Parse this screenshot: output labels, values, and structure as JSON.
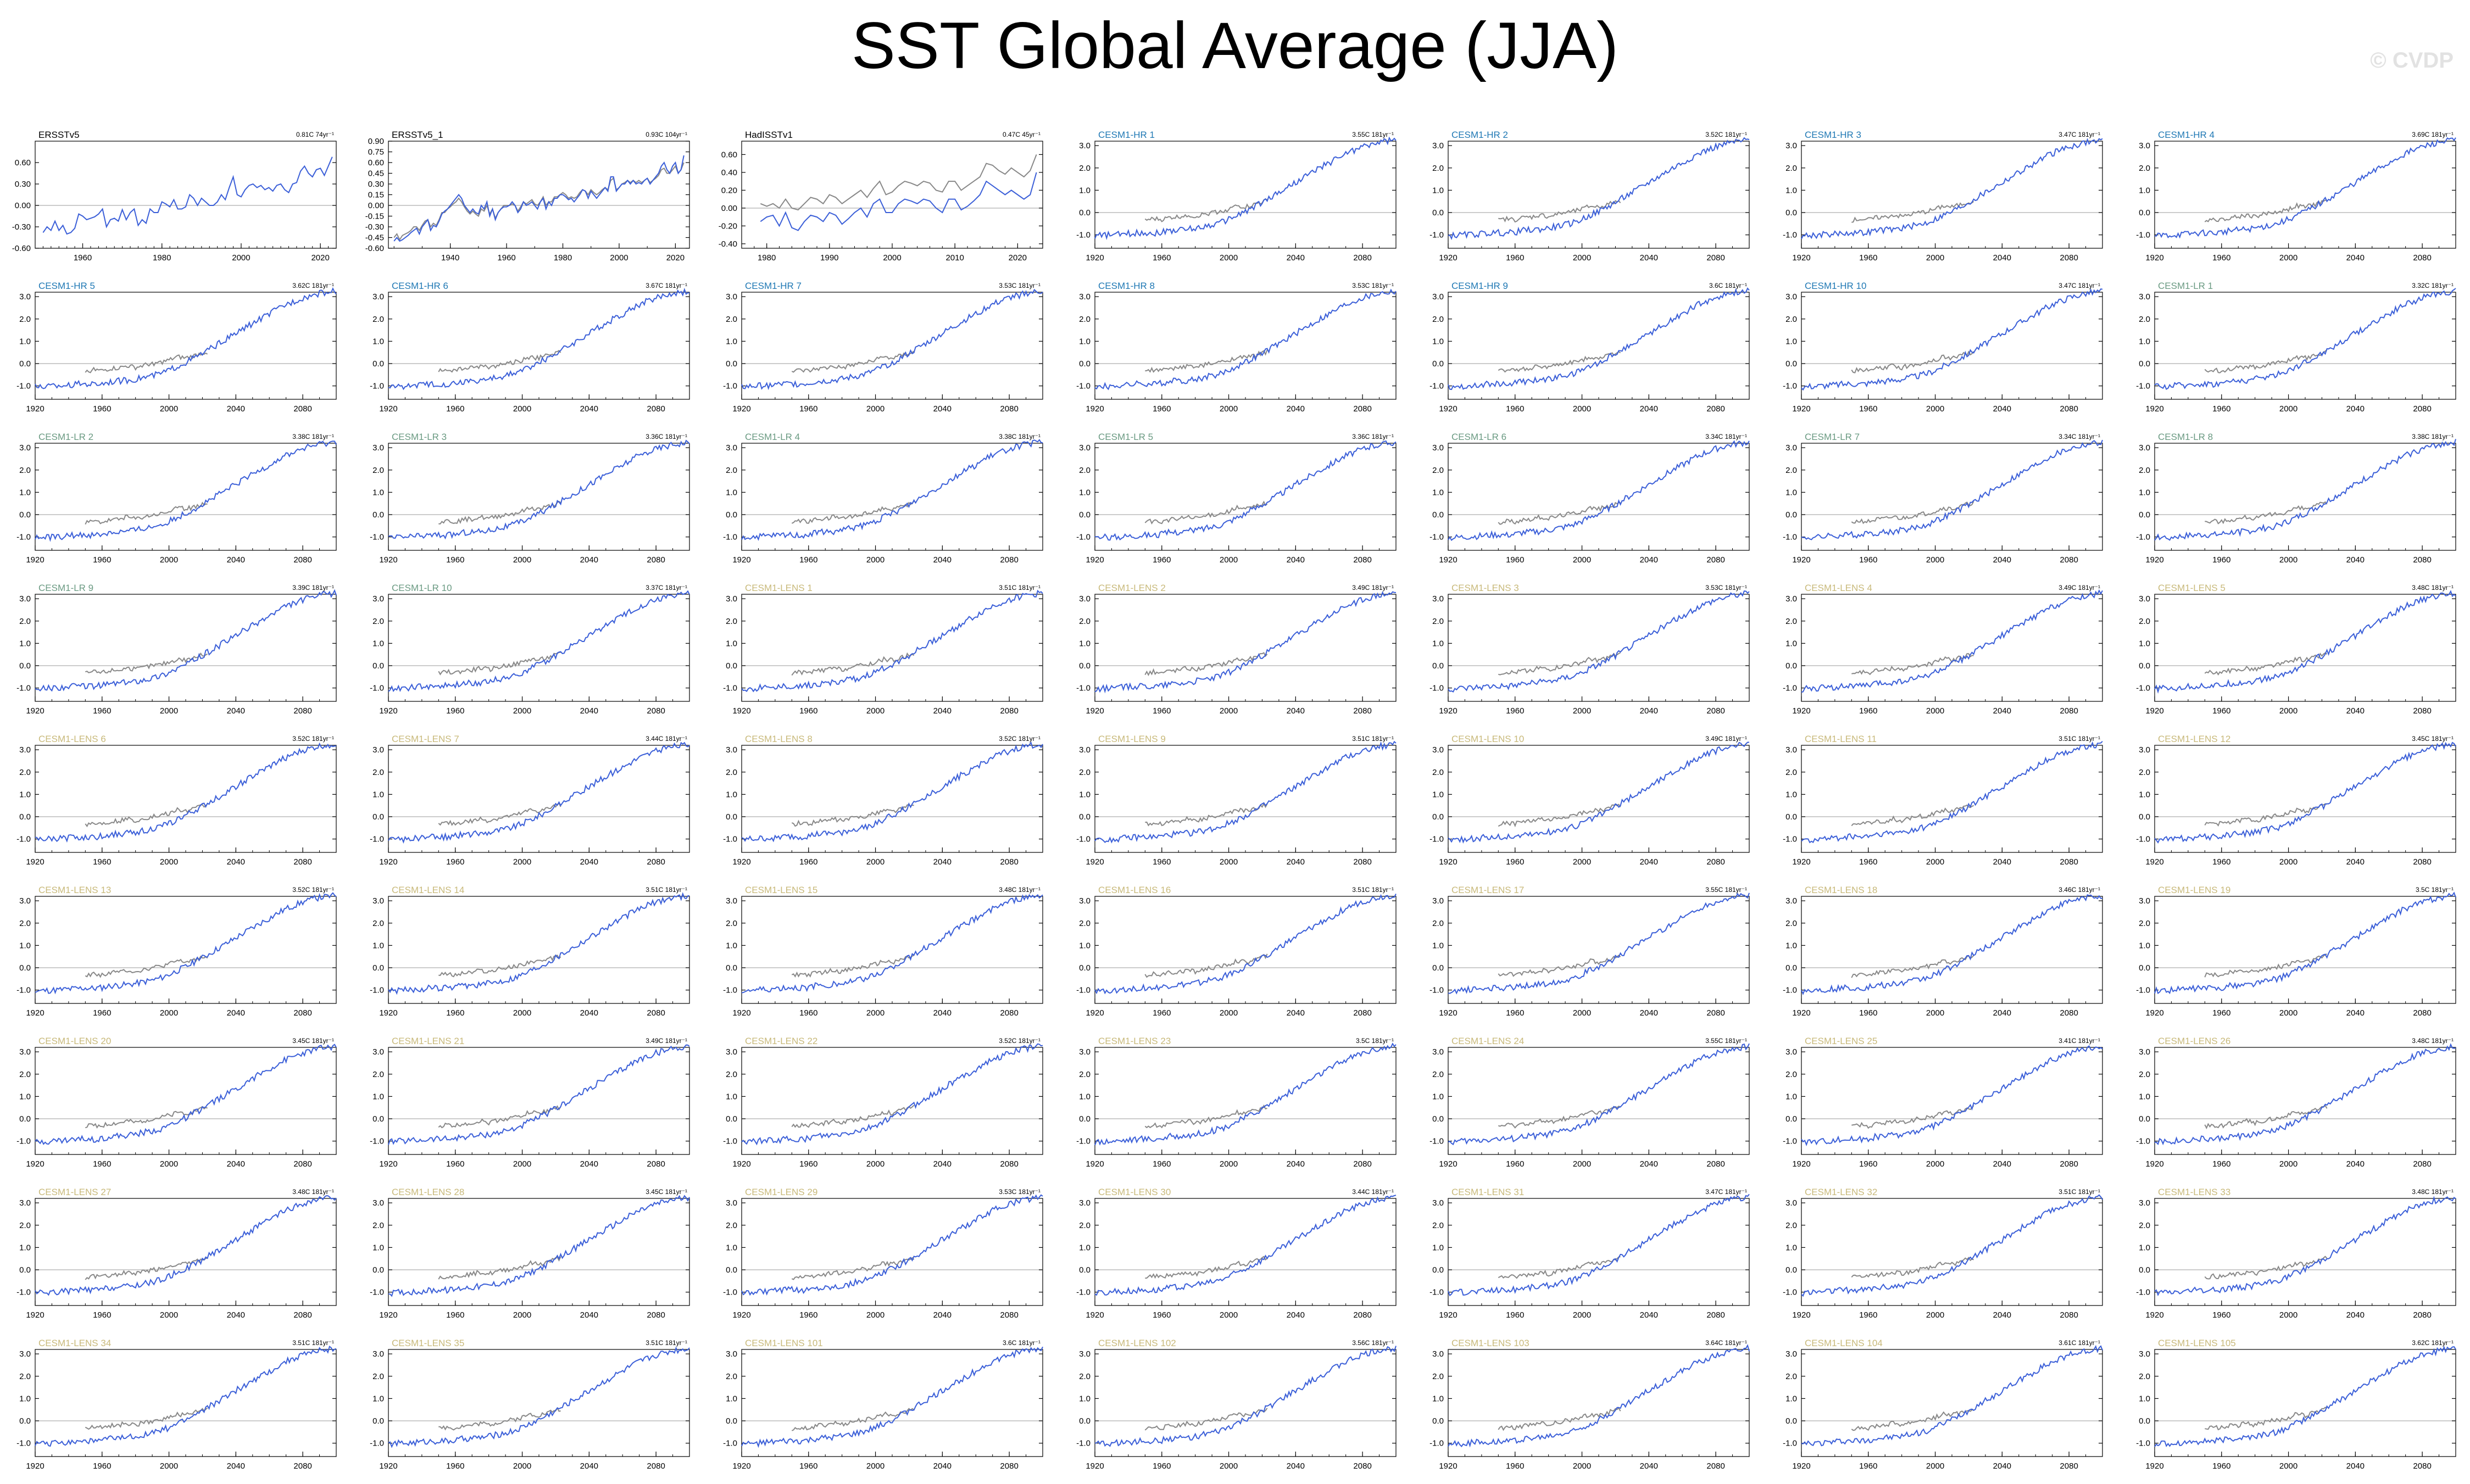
{
  "title": "SST Global Average (JJA)",
  "watermark": "© CVDP",
  "colors": {
    "obs_label": "#000000",
    "hr_label": "#1f78b4",
    "lr_label": "#6a9a82",
    "lens_label": "#c8b97a",
    "model_line": "#3b5fd8",
    "obs_line": "#888888",
    "zero_line": "#bbbbbb",
    "frame": "#000000"
  },
  "chart_data": {
    "type": "line",
    "title": "SST Global Average (JJA)",
    "grid": false,
    "panels": [
      {
        "label": "ERSSTv5",
        "group": "obs",
        "trend": "0.81C 74yr⁻¹",
        "xlim": [
          1948,
          2024
        ],
        "xticks": [
          1960,
          1980,
          2000,
          2020
        ],
        "ylim": [
          -0.6,
          0.9
        ],
        "yticks": [
          -0.6,
          -0.3,
          0.0,
          0.3,
          0.6
        ],
        "ytick_labels": [
          "-0.60",
          "-0.30",
          "0.00",
          "0.30",
          "0.60"
        ],
        "series": [
          {
            "key": "sst",
            "start": 1950,
            "end": 2023,
            "values": [
              -0.38,
              -0.3,
              -0.35,
              -0.22,
              -0.35,
              -0.28,
              -0.4,
              -0.38,
              -0.32,
              -0.12,
              -0.15,
              -0.2,
              -0.18,
              -0.16,
              -0.12,
              -0.05,
              -0.3,
              -0.2,
              -0.18,
              -0.22,
              -0.06,
              -0.2,
              -0.1,
              -0.05,
              -0.28,
              -0.2,
              -0.25,
              -0.05,
              -0.1,
              -0.1,
              0.05,
              0.02,
              -0.02,
              0.08,
              -0.05,
              -0.05,
              -0.02,
              0.15,
              0.1,
              0.0,
              0.1,
              0.05,
              0.0,
              0.0,
              0.05,
              0.15,
              0.08,
              0.25,
              0.4,
              0.15,
              0.12,
              0.22,
              0.28,
              0.3,
              0.25,
              0.28,
              0.22,
              0.25,
              0.2,
              0.28,
              0.3,
              0.22,
              0.18,
              0.3,
              0.32,
              0.48,
              0.55,
              0.45,
              0.4,
              0.5,
              0.52,
              0.42,
              0.55,
              0.68
            ]
          }
        ]
      },
      {
        "label": "ERSSTv5_1",
        "group": "obs",
        "trend": "0.93C 104yr⁻¹",
        "xlim": [
          1918,
          2025
        ],
        "xticks": [
          1940,
          1960,
          1980,
          2000,
          2020
        ],
        "ylim": [
          -0.6,
          0.9
        ],
        "yticks": [
          -0.6,
          -0.45,
          -0.3,
          -0.15,
          0.0,
          0.15,
          0.3,
          0.45,
          0.6,
          0.75,
          0.9
        ],
        "ytick_labels": [
          "-0.60",
          "-0.45",
          "-0.30",
          "-0.15",
          "0.00",
          "0.15",
          "0.30",
          "0.45",
          "0.60",
          "0.75",
          "0.90"
        ],
        "series": [
          {
            "key": "sst",
            "start": 1920,
            "end": 2023,
            "values": [
              -0.5,
              -0.45,
              -0.5,
              -0.48,
              -0.45,
              -0.42,
              -0.38,
              -0.35,
              -0.32,
              -0.4,
              -0.3,
              -0.25,
              -0.2,
              -0.35,
              -0.28,
              -0.3,
              -0.22,
              -0.12,
              -0.08,
              -0.05,
              0.0,
              0.05,
              0.1,
              0.15,
              0.1,
              0.0,
              -0.05,
              -0.1,
              -0.05,
              -0.1,
              -0.12,
              0.0,
              -0.05,
              0.05,
              -0.15,
              -0.05,
              -0.2,
              -0.1,
              -0.05,
              -0.02,
              -0.02,
              0.0,
              0.05,
              0.0,
              -0.1,
              -0.05,
              0.05,
              0.0,
              0.02,
              0.05,
              0.0,
              -0.05,
              0.05,
              0.1,
              -0.05,
              0.05,
              0.0,
              0.1,
              0.1,
              0.15,
              0.15,
              0.12,
              0.08,
              0.1,
              0.05,
              0.1,
              0.15,
              0.22,
              0.2,
              0.1,
              0.2,
              0.15,
              0.1,
              0.15,
              0.2,
              0.25,
              0.2,
              0.4,
              0.4,
              0.2,
              0.25,
              0.3,
              0.3,
              0.35,
              0.3,
              0.35,
              0.3,
              0.32,
              0.3,
              0.35,
              0.38,
              0.3,
              0.35,
              0.4,
              0.45,
              0.55,
              0.6,
              0.5,
              0.45,
              0.55,
              0.6,
              0.45,
              0.5,
              0.7
            ]
          },
          {
            "key": "ref",
            "start": 1920,
            "end": 2023,
            "values": [
              -0.45,
              -0.4,
              -0.48,
              -0.42,
              -0.4,
              -0.38,
              -0.35,
              -0.3,
              -0.3,
              -0.35,
              -0.28,
              -0.22,
              -0.2,
              -0.3,
              -0.25,
              -0.28,
              -0.2,
              -0.1,
              -0.1,
              -0.05,
              -0.02,
              0.02,
              0.05,
              0.1,
              0.05,
              -0.02,
              -0.08,
              -0.12,
              -0.08,
              -0.12,
              -0.15,
              -0.05,
              -0.08,
              0.0,
              -0.12,
              -0.05,
              -0.18,
              -0.1,
              -0.05,
              0.0,
              0.0,
              0.0,
              0.02,
              0.0,
              -0.08,
              -0.02,
              0.05,
              0.02,
              0.05,
              0.08,
              0.02,
              0.0,
              0.05,
              0.12,
              0.0,
              0.05,
              0.05,
              0.12,
              0.12,
              0.15,
              0.18,
              0.15,
              0.1,
              0.12,
              0.1,
              0.12,
              0.18,
              0.22,
              0.2,
              0.15,
              0.22,
              0.18,
              0.15,
              0.18,
              0.22,
              0.25,
              0.22,
              0.35,
              0.38,
              0.22,
              0.25,
              0.3,
              0.32,
              0.35,
              0.32,
              0.35,
              0.32,
              0.35,
              0.32,
              0.35,
              0.38,
              0.32,
              0.35,
              0.38,
              0.42,
              0.5,
              0.52,
              0.45,
              0.45,
              0.5,
              0.55,
              0.45,
              0.5,
              0.6
            ]
          }
        ]
      },
      {
        "label": "HadISSTv1",
        "group": "obs",
        "trend": "0.47C 45yr⁻¹",
        "xlim": [
          1976,
          2024
        ],
        "xticks": [
          1980,
          1990,
          2000,
          2010,
          2020
        ],
        "ylim": [
          -0.45,
          0.75
        ],
        "yticks": [
          -0.4,
          -0.2,
          0.0,
          0.2,
          0.4,
          0.6
        ],
        "ytick_labels": [
          "-0.40",
          "-0.20",
          "0.00",
          "0.20",
          "0.40",
          "0.60"
        ],
        "series": [
          {
            "key": "sst",
            "start": 1979,
            "end": 2023,
            "values": [
              -0.15,
              -0.1,
              -0.08,
              -0.2,
              -0.05,
              -0.22,
              -0.25,
              -0.15,
              -0.08,
              -0.1,
              -0.15,
              -0.05,
              -0.08,
              -0.18,
              -0.12,
              -0.05,
              0.0,
              -0.1,
              0.05,
              0.1,
              -0.05,
              -0.05,
              0.05,
              0.1,
              0.08,
              0.05,
              0.1,
              0.08,
              0.0,
              -0.05,
              0.1,
              0.1,
              -0.02,
              0.02,
              0.08,
              0.15,
              0.3,
              0.25,
              0.2,
              0.15,
              0.2,
              0.15,
              0.1,
              0.15,
              0.4
            ]
          },
          {
            "key": "ref",
            "start": 1979,
            "end": 2023,
            "values": [
              0.05,
              0.02,
              0.05,
              0.0,
              0.1,
              0.0,
              -0.02,
              0.05,
              0.12,
              0.1,
              0.05,
              0.15,
              0.12,
              0.05,
              0.1,
              0.15,
              0.2,
              0.12,
              0.22,
              0.3,
              0.15,
              0.18,
              0.25,
              0.3,
              0.28,
              0.25,
              0.3,
              0.28,
              0.2,
              0.18,
              0.3,
              0.3,
              0.2,
              0.25,
              0.3,
              0.35,
              0.5,
              0.48,
              0.42,
              0.38,
              0.45,
              0.4,
              0.35,
              0.42,
              0.6
            ]
          }
        ]
      },
      {
        "label": "CESM1-HR 1",
        "group": "hr",
        "trend": "3.55C 181yr⁻¹"
      },
      {
        "label": "CESM1-HR 2",
        "group": "hr",
        "trend": "3.52C 181yr⁻¹"
      },
      {
        "label": "CESM1-HR 3",
        "group": "hr",
        "trend": "3.47C 181yr⁻¹"
      },
      {
        "label": "CESM1-HR 4",
        "group": "hr",
        "trend": "3.69C 181yr⁻¹"
      },
      {
        "label": "CESM1-HR 5",
        "group": "hr",
        "trend": "3.62C 181yr⁻¹"
      },
      {
        "label": "CESM1-HR 6",
        "group": "hr",
        "trend": "3.67C 181yr⁻¹"
      },
      {
        "label": "CESM1-HR 7",
        "group": "hr",
        "trend": "3.53C 181yr⁻¹"
      },
      {
        "label": "CESM1-HR 8",
        "group": "hr",
        "trend": "3.53C 181yr⁻¹"
      },
      {
        "label": "CESM1-HR 9",
        "group": "hr",
        "trend": "3.6C 181yr⁻¹"
      },
      {
        "label": "CESM1-HR 10",
        "group": "hr",
        "trend": "3.47C 181yr⁻¹"
      },
      {
        "label": "CESM1-LR 1",
        "group": "lr",
        "trend": "3.32C 181yr⁻¹"
      },
      {
        "label": "CESM1-LR 2",
        "group": "lr",
        "trend": "3.38C 181yr⁻¹"
      },
      {
        "label": "CESM1-LR 3",
        "group": "lr",
        "trend": "3.36C 181yr⁻¹"
      },
      {
        "label": "CESM1-LR 4",
        "group": "lr",
        "trend": "3.38C 181yr⁻¹"
      },
      {
        "label": "CESM1-LR 5",
        "group": "lr",
        "trend": "3.36C 181yr⁻¹"
      },
      {
        "label": "CESM1-LR 6",
        "group": "lr",
        "trend": "3.34C 181yr⁻¹"
      },
      {
        "label": "CESM1-LR 7",
        "group": "lr",
        "trend": "3.34C 181yr⁻¹"
      },
      {
        "label": "CESM1-LR 8",
        "group": "lr",
        "trend": "3.38C 181yr⁻¹"
      },
      {
        "label": "CESM1-LR 9",
        "group": "lr",
        "trend": "3.39C 181yr⁻¹"
      },
      {
        "label": "CESM1-LR 10",
        "group": "lr",
        "trend": "3.37C 181yr⁻¹"
      },
      {
        "label": "CESM1-LENS 1",
        "group": "lens",
        "trend": "3.51C 181yr⁻¹"
      },
      {
        "label": "CESM1-LENS 2",
        "group": "lens",
        "trend": "3.49C 181yr⁻¹"
      },
      {
        "label": "CESM1-LENS 3",
        "group": "lens",
        "trend": "3.53C 181yr⁻¹"
      },
      {
        "label": "CESM1-LENS 4",
        "group": "lens",
        "trend": "3.49C 181yr⁻¹"
      },
      {
        "label": "CESM1-LENS 5",
        "group": "lens",
        "trend": "3.48C 181yr⁻¹"
      },
      {
        "label": "CESM1-LENS 6",
        "group": "lens",
        "trend": "3.52C 181yr⁻¹"
      },
      {
        "label": "CESM1-LENS 7",
        "group": "lens",
        "trend": "3.44C 181yr⁻¹"
      },
      {
        "label": "CESM1-LENS 8",
        "group": "lens",
        "trend": "3.52C 181yr⁻¹"
      },
      {
        "label": "CESM1-LENS 9",
        "group": "lens",
        "trend": "3.51C 181yr⁻¹"
      },
      {
        "label": "CESM1-LENS 10",
        "group": "lens",
        "trend": "3.49C 181yr⁻¹"
      },
      {
        "label": "CESM1-LENS 11",
        "group": "lens",
        "trend": "3.51C 181yr⁻¹"
      },
      {
        "label": "CESM1-LENS 12",
        "group": "lens",
        "trend": "3.45C 181yr⁻¹"
      },
      {
        "label": "CESM1-LENS 13",
        "group": "lens",
        "trend": "3.52C 181yr⁻¹"
      },
      {
        "label": "CESM1-LENS 14",
        "group": "lens",
        "trend": "3.51C 181yr⁻¹"
      },
      {
        "label": "CESM1-LENS 15",
        "group": "lens",
        "trend": "3.48C 181yr⁻¹"
      },
      {
        "label": "CESM1-LENS 16",
        "group": "lens",
        "trend": "3.51C 181yr⁻¹"
      },
      {
        "label": "CESM1-LENS 17",
        "group": "lens",
        "trend": "3.55C 181yr⁻¹"
      },
      {
        "label": "CESM1-LENS 18",
        "group": "lens",
        "trend": "3.46C 181yr⁻¹"
      },
      {
        "label": "CESM1-LENS 19",
        "group": "lens",
        "trend": "3.5C 181yr⁻¹"
      },
      {
        "label": "CESM1-LENS 20",
        "group": "lens",
        "trend": "3.45C 181yr⁻¹"
      },
      {
        "label": "CESM1-LENS 21",
        "group": "lens",
        "trend": "3.49C 181yr⁻¹"
      },
      {
        "label": "CESM1-LENS 22",
        "group": "lens",
        "trend": "3.52C 181yr⁻¹"
      },
      {
        "label": "CESM1-LENS 23",
        "group": "lens",
        "trend": "3.5C 181yr⁻¹"
      },
      {
        "label": "CESM1-LENS 24",
        "group": "lens",
        "trend": "3.55C 181yr⁻¹"
      },
      {
        "label": "CESM1-LENS 25",
        "group": "lens",
        "trend": "3.41C 181yr⁻¹"
      },
      {
        "label": "CESM1-LENS 26",
        "group": "lens",
        "trend": "3.48C 181yr⁻¹"
      },
      {
        "label": "CESM1-LENS 27",
        "group": "lens",
        "trend": "3.48C 181yr⁻¹"
      },
      {
        "label": "CESM1-LENS 28",
        "group": "lens",
        "trend": "3.45C 181yr⁻¹"
      },
      {
        "label": "CESM1-LENS 29",
        "group": "lens",
        "trend": "3.53C 181yr⁻¹"
      },
      {
        "label": "CESM1-LENS 30",
        "group": "lens",
        "trend": "3.44C 181yr⁻¹"
      },
      {
        "label": "CESM1-LENS 31",
        "group": "lens",
        "trend": "3.47C 181yr⁻¹"
      },
      {
        "label": "CESM1-LENS 32",
        "group": "lens",
        "trend": "3.51C 181yr⁻¹"
      },
      {
        "label": "CESM1-LENS 33",
        "group": "lens",
        "trend": "3.48C 181yr⁻¹"
      },
      {
        "label": "CESM1-LENS 34",
        "group": "lens",
        "trend": "3.51C 181yr⁻¹"
      },
      {
        "label": "CESM1-LENS 35",
        "group": "lens",
        "trend": "3.51C 181yr⁻¹"
      },
      {
        "label": "CESM1-LENS 101",
        "group": "lens",
        "trend": "3.6C 181yr⁻¹"
      },
      {
        "label": "CESM1-LENS 102",
        "group": "lens",
        "trend": "3.56C 181yr⁻¹"
      },
      {
        "label": "CESM1-LENS 103",
        "group": "lens",
        "trend": "3.64C 181yr⁻¹"
      },
      {
        "label": "CESM1-LENS 104",
        "group": "lens",
        "trend": "3.61C 181yr⁻¹"
      },
      {
        "label": "CESM1-LENS 105",
        "group": "lens",
        "trend": "3.62C 181yr⁻¹"
      }
    ],
    "model_defaults": {
      "xlim": [
        1920,
        2100
      ],
      "xticks": [
        1920,
        1960,
        2000,
        2040,
        2080
      ],
      "ylim": [
        -1.6,
        3.2
      ],
      "yticks": [
        -1.0,
        0.0,
        1.0,
        2.0,
        3.0
      ],
      "ytick_labels": [
        "-1.0",
        "0.0",
        "1.0",
        "2.0",
        "3.0"
      ],
      "model_series": {
        "start": 1920,
        "end": 2100,
        "step": 5,
        "values": [
          -1.05,
          -1.02,
          -1.0,
          -0.98,
          -0.95,
          -0.92,
          -0.9,
          -0.92,
          -0.88,
          -0.8,
          -0.78,
          -0.75,
          -0.7,
          -0.62,
          -0.55,
          -0.45,
          -0.3,
          -0.12,
          0.05,
          0.25,
          0.45,
          0.68,
          0.9,
          1.12,
          1.35,
          1.58,
          1.8,
          2.02,
          2.22,
          2.45,
          2.65,
          2.8,
          2.95,
          3.05,
          3.15,
          3.2,
          3.25
        ]
      },
      "obs_series": {
        "start": 1950,
        "end": 2023,
        "step": 5,
        "values": [
          -0.35,
          -0.28,
          -0.32,
          -0.22,
          -0.2,
          -0.1,
          -0.18,
          -0.08,
          0.0,
          0.05,
          0.15,
          0.3,
          0.25,
          0.35,
          0.48,
          0.55
        ]
      }
    }
  }
}
